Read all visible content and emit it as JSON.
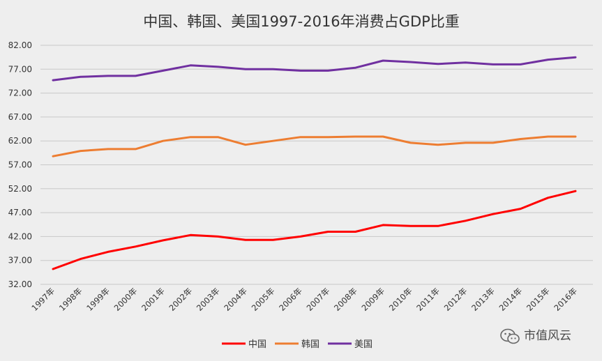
{
  "chart_data": {
    "type": "line",
    "title": "中国、韩国、美国1997-2016年消费占GDP比重",
    "xlabel": "",
    "ylabel": "",
    "categories": [
      "1997年",
      "1998年",
      "1999年",
      "2000年",
      "2001年",
      "2002年",
      "2003年",
      "2004年",
      "2005年",
      "2006年",
      "2007年",
      "2008年",
      "2009年",
      "2010年",
      "2011年",
      "2012年",
      "2013年",
      "2014年",
      "2015年",
      "2016年"
    ],
    "ylim": [
      32,
      82
    ],
    "yticks": [
      "32.00",
      "37.00",
      "42.00",
      "47.00",
      "52.00",
      "57.00",
      "62.00",
      "67.00",
      "72.00",
      "77.00",
      "82.00"
    ],
    "grid": true,
    "legend": "bottom",
    "series": [
      {
        "name": "中国",
        "color": "#ff0000",
        "values": [
          35.2,
          37.3,
          38.8,
          39.9,
          41.2,
          42.3,
          42.0,
          41.3,
          41.3,
          42.0,
          43.0,
          43.0,
          44.4,
          44.2,
          44.2,
          45.3,
          46.7,
          47.8,
          50.1,
          51.5
        ]
      },
      {
        "name": "韩国",
        "color": "#ed7d31",
        "values": [
          58.8,
          59.9,
          60.3,
          60.3,
          62.0,
          62.8,
          62.8,
          61.2,
          62.0,
          62.8,
          62.8,
          62.9,
          62.9,
          61.6,
          61.2,
          61.6,
          61.6,
          62.4,
          62.9,
          62.9
        ]
      },
      {
        "name": "美国",
        "color": "#7030a0",
        "values": [
          74.7,
          75.4,
          75.6,
          75.6,
          76.7,
          77.8,
          77.5,
          77.0,
          77.0,
          76.7,
          76.7,
          77.3,
          78.8,
          78.5,
          78.1,
          78.4,
          78.0,
          78.0,
          79.0,
          79.5
        ]
      }
    ]
  },
  "watermark": {
    "text": "市值风云",
    "icon": "wechat-icon"
  }
}
